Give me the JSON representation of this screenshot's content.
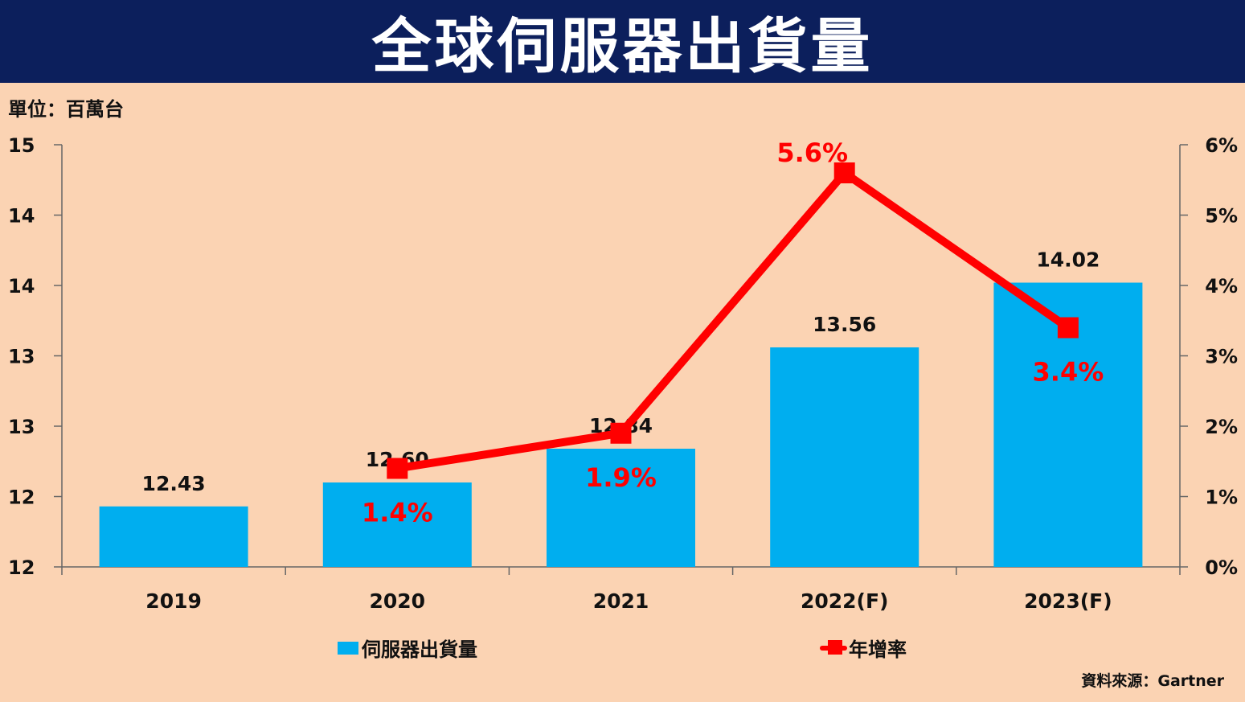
{
  "title": "全球伺服器出貨量",
  "unit_label": "單位：百萬台",
  "source": "資料來源：Gartner",
  "colors": {
    "bar": "#00aeef",
    "line": "#ff0000",
    "title_bg": "#0c1f5c",
    "background": "#fbd3b3"
  },
  "chart_data": {
    "type": "bar",
    "categories": [
      "2019",
      "2020",
      "2021",
      "2022(F)",
      "2023(F)"
    ],
    "series": [
      {
        "name": "伺服器出貨量",
        "type": "bar",
        "axis": "left",
        "values": [
          12.43,
          12.6,
          12.84,
          13.56,
          14.02
        ],
        "labels": [
          "12.43",
          "12.60",
          "12.84",
          "13.56",
          "14.02"
        ]
      },
      {
        "name": "年增率",
        "type": "line",
        "axis": "right",
        "values": [
          null,
          1.4,
          1.9,
          5.6,
          3.4
        ],
        "labels": [
          "",
          "1.4%",
          "1.9%",
          "5.6%",
          "3.4%"
        ]
      }
    ],
    "y_left": {
      "ylim": [
        12,
        15
      ],
      "tick_labels": [
        "12",
        "12",
        "13",
        "13",
        "14",
        "14",
        "15"
      ]
    },
    "y_right": {
      "ylim": [
        0,
        6
      ],
      "tick_labels": [
        "0%",
        "1%",
        "2%",
        "3%",
        "4%",
        "5%",
        "6%"
      ]
    },
    "legend_position": "bottom",
    "grid": false
  }
}
